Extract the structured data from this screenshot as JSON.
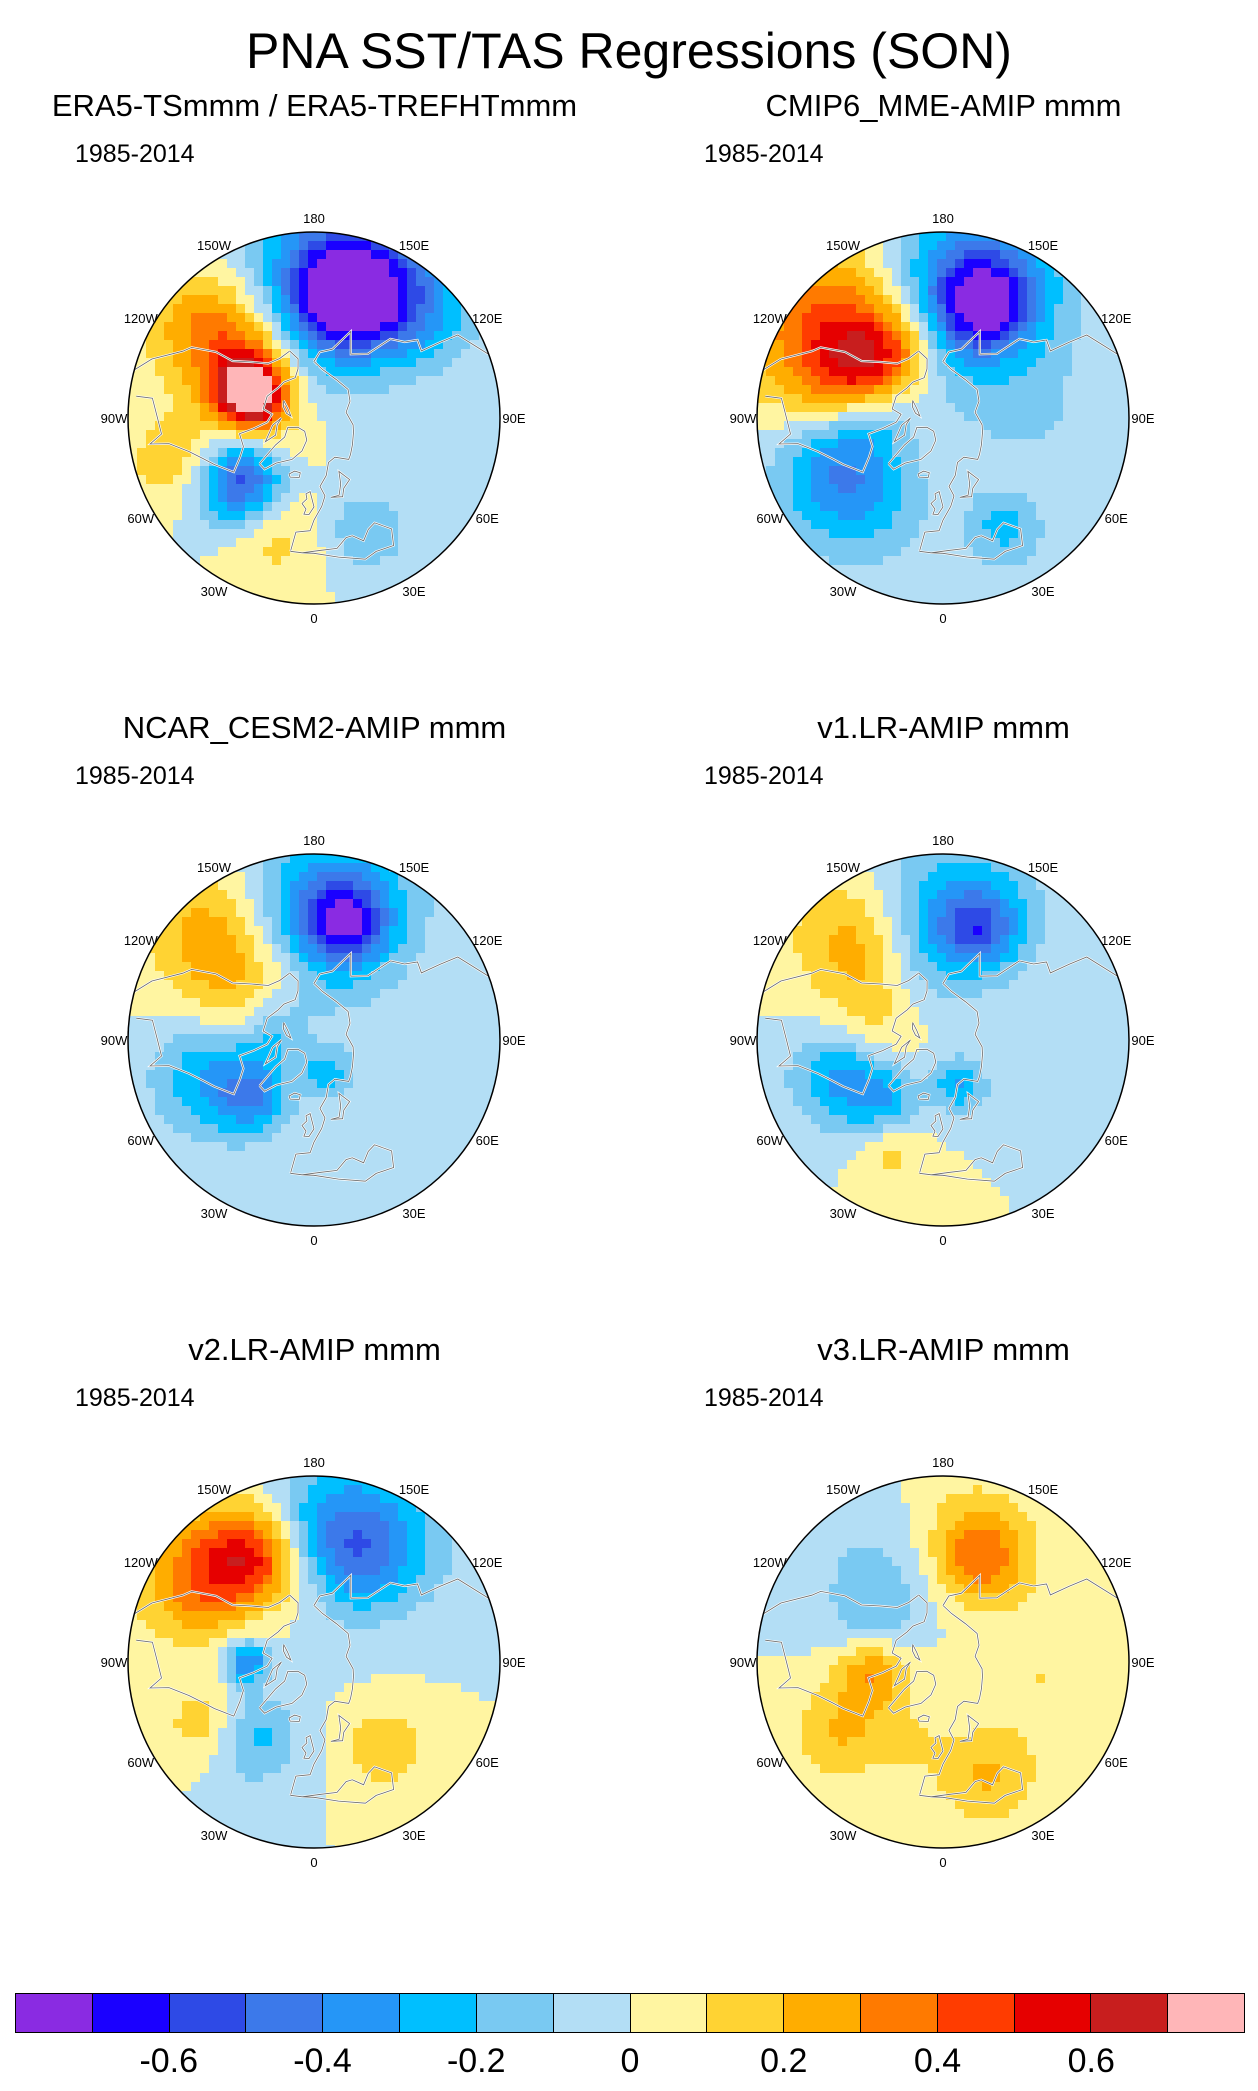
{
  "title": "PNA SST/TAS Regressions (SON)",
  "period": "1985-2014",
  "lon_labels": [
    "180",
    "150E",
    "120E",
    "90E",
    "60E",
    "30E",
    "0",
    "30W",
    "60W",
    "90W",
    "120W",
    "150W"
  ],
  "panels": [
    {
      "title": "ERA5-TSmmm / ERA5-TREFHTmmm"
    },
    {
      "title": "CMIP6_MME-AMIP  mmm"
    },
    {
      "title": "NCAR_CESM2-AMIP  mmm"
    },
    {
      "title": "v1.LR-AMIP  mmm"
    },
    {
      "title": "v2.LR-AMIP  mmm"
    },
    {
      "title": "v3.LR-AMIP  mmm"
    }
  ],
  "colorbar": {
    "colors": [
      "#8a2be2",
      "#1a00ff",
      "#2e4ae6",
      "#3c79ea",
      "#2596f7",
      "#00bfff",
      "#79c9f2",
      "#b3def5",
      "#fff5a1",
      "#ffd333",
      "#ffad00",
      "#ff7a00",
      "#ff3c00",
      "#e60000",
      "#c81e1e",
      "#ffb6b8"
    ],
    "tick_labels": [
      "-0.6",
      "-0.4",
      "-0.2",
      "0",
      "0.2",
      "0.4",
      "0.6"
    ]
  },
  "chart_data": {
    "type": "heatmap",
    "title": "PNA SST/TAS Regressions (SON)",
    "projection": "north polar stereographic",
    "period": "1985-2014",
    "contour_levels": [
      -0.7,
      -0.6,
      -0.5,
      -0.4,
      -0.3,
      -0.2,
      -0.1,
      0,
      0.1,
      0.2,
      0.3,
      0.4,
      0.5,
      0.6,
      0.7
    ],
    "panels": [
      {
        "name": "ERA5-TSmmm / ERA5-TREFHTmmm",
        "features": [
          {
            "lon": 178,
            "lat": 42,
            "value": -0.55,
            "spread": 22
          },
          {
            "lon": 165,
            "lat": 38,
            "value": -0.6,
            "spread": 12
          },
          {
            "lon": 140,
            "lat": 32,
            "value": -0.3,
            "spread": 14
          },
          {
            "lon": -145,
            "lat": 45,
            "value": 0.3,
            "spread": 18
          },
          {
            "lon": -118,
            "lat": 58,
            "value": 0.5,
            "spread": 12
          },
          {
            "lon": -108,
            "lat": 62,
            "value": 0.55,
            "spread": 8
          },
          {
            "lon": -130,
            "lat": 32,
            "value": 0.2,
            "spread": 12
          },
          {
            "lon": -70,
            "lat": 35,
            "value": 0.25,
            "spread": 12
          },
          {
            "lon": -55,
            "lat": 45,
            "value": -0.35,
            "spread": 12
          },
          {
            "lon": -45,
            "lat": 52,
            "value": -0.3,
            "spread": 10
          },
          {
            "lon": -20,
            "lat": 40,
            "value": 0.15,
            "spread": 12
          },
          {
            "lon": 25,
            "lat": 40,
            "value": -0.2,
            "spread": 10
          },
          {
            "lon": -95,
            "lat": 75,
            "value": 0.1,
            "spread": 12
          }
        ]
      },
      {
        "name": "CMIP6_MME-AMIP  mmm",
        "features": [
          {
            "lon": 178,
            "lat": 42,
            "value": -0.45,
            "spread": 24
          },
          {
            "lon": 160,
            "lat": 40,
            "value": -0.55,
            "spread": 12
          },
          {
            "lon": -135,
            "lat": 35,
            "value": 0.45,
            "spread": 22
          },
          {
            "lon": -120,
            "lat": 50,
            "value": 0.4,
            "spread": 14
          },
          {
            "lon": -150,
            "lat": 55,
            "value": 0.2,
            "spread": 12
          },
          {
            "lon": -65,
            "lat": 40,
            "value": -0.3,
            "spread": 14
          },
          {
            "lon": -40,
            "lat": 45,
            "value": -0.2,
            "spread": 16
          },
          {
            "lon": -90,
            "lat": 60,
            "value": -0.25,
            "spread": 12
          },
          {
            "lon": 90,
            "lat": 55,
            "value": -0.1,
            "spread": 20
          },
          {
            "lon": 45,
            "lat": 45,
            "value": 0.05,
            "spread": 10
          },
          {
            "lon": 30,
            "lat": 40,
            "value": -0.25,
            "spread": 10
          }
        ]
      },
      {
        "name": "NCAR_CESM2-AMIP  mmm",
        "features": [
          {
            "lon": 178,
            "lat": 42,
            "value": -0.4,
            "spread": 22
          },
          {
            "lon": 165,
            "lat": 40,
            "value": -0.45,
            "spread": 10
          },
          {
            "lon": -140,
            "lat": 32,
            "value": 0.3,
            "spread": 16
          },
          {
            "lon": -125,
            "lat": 48,
            "value": 0.15,
            "spread": 12
          },
          {
            "lon": -70,
            "lat": 45,
            "value": -0.3,
            "spread": 14
          },
          {
            "lon": -45,
            "lat": 55,
            "value": -0.3,
            "spread": 10
          },
          {
            "lon": -90,
            "lat": 70,
            "value": -0.2,
            "spread": 10
          },
          {
            "lon": 20,
            "lat": 75,
            "value": -0.25,
            "spread": 8
          },
          {
            "lon": -100,
            "lat": 60,
            "value": 0.1,
            "spread": 10
          },
          {
            "lon": -160,
            "lat": 58,
            "value": 0.12,
            "spread": 10
          }
        ]
      },
      {
        "name": "v1.LR-AMIP  mmm",
        "features": [
          {
            "lon": 178,
            "lat": 42,
            "value": -0.3,
            "spread": 20
          },
          {
            "lon": 162,
            "lat": 42,
            "value": -0.35,
            "spread": 10
          },
          {
            "lon": -140,
            "lat": 35,
            "value": 0.25,
            "spread": 14
          },
          {
            "lon": -125,
            "lat": 50,
            "value": 0.1,
            "spread": 12
          },
          {
            "lon": -100,
            "lat": 62,
            "value": 0.1,
            "spread": 12
          },
          {
            "lon": -70,
            "lat": 45,
            "value": -0.3,
            "spread": 12
          },
          {
            "lon": -45,
            "lat": 55,
            "value": -0.25,
            "spread": 10
          },
          {
            "lon": -25,
            "lat": 40,
            "value": 0.15,
            "spread": 8
          },
          {
            "lon": 20,
            "lat": 70,
            "value": -0.3,
            "spread": 8
          }
        ]
      },
      {
        "name": "v2.LR-AMIP  mmm",
        "features": [
          {
            "lon": 170,
            "lat": 42,
            "value": -0.4,
            "spread": 18
          },
          {
            "lon": 150,
            "lat": 38,
            "value": -0.2,
            "spread": 16
          },
          {
            "lon": -150,
            "lat": 40,
            "value": 0.5,
            "spread": 12
          },
          {
            "lon": -125,
            "lat": 35,
            "value": 0.35,
            "spread": 14
          },
          {
            "lon": -175,
            "lat": 55,
            "value": 0.15,
            "spread": 12
          },
          {
            "lon": -60,
            "lat": 40,
            "value": 0.2,
            "spread": 10
          },
          {
            "lon": -40,
            "lat": 50,
            "value": -0.25,
            "spread": 12
          },
          {
            "lon": -90,
            "lat": 62,
            "value": -0.4,
            "spread": 6
          },
          {
            "lon": 40,
            "lat": 45,
            "value": 0.2,
            "spread": 10
          }
        ]
      },
      {
        "name": "v3.LR-AMIP  mmm",
        "features": [
          {
            "lon": 160,
            "lat": 45,
            "value": 0.35,
            "spread": 12
          },
          {
            "lon": 178,
            "lat": 40,
            "value": 0.1,
            "spread": 18
          },
          {
            "lon": -150,
            "lat": 45,
            "value": -0.15,
            "spread": 18
          },
          {
            "lon": -120,
            "lat": 55,
            "value": -0.1,
            "spread": 12
          },
          {
            "lon": -80,
            "lat": 60,
            "value": 0.3,
            "spread": 10
          },
          {
            "lon": -55,
            "lat": 40,
            "value": 0.2,
            "spread": 12
          },
          {
            "lon": 20,
            "lat": 40,
            "value": 0.2,
            "spread": 12
          },
          {
            "lon": 80,
            "lat": 50,
            "value": 0.1,
            "spread": 20
          },
          {
            "lon": -20,
            "lat": 55,
            "value": 0.1,
            "spread": 10
          }
        ]
      }
    ]
  }
}
